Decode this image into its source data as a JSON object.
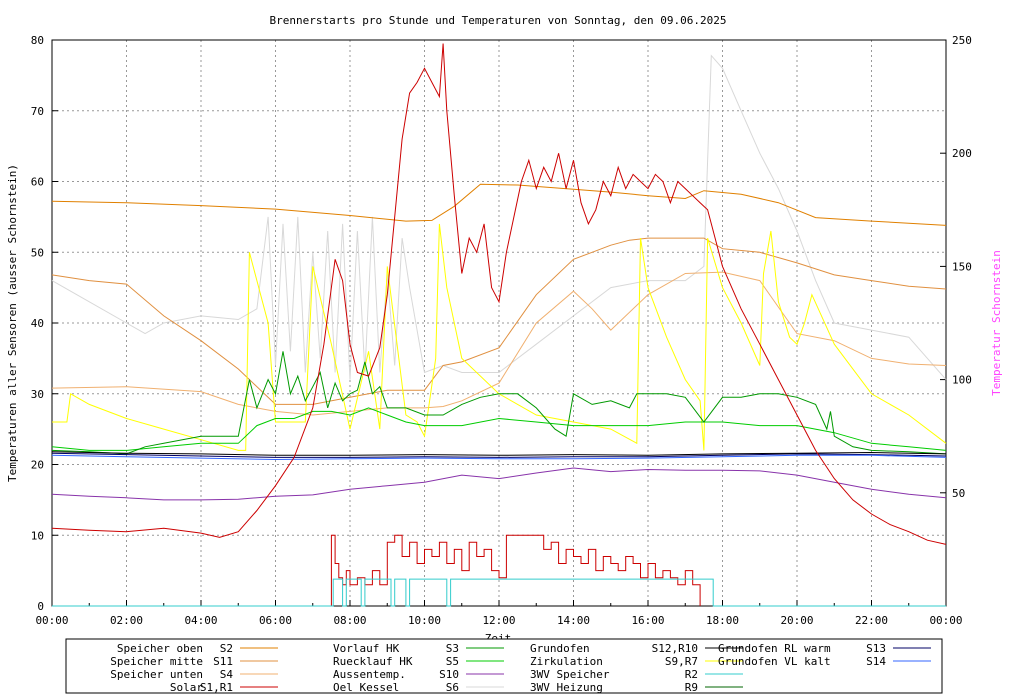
{
  "chart_data": {
    "type": "line",
    "title": "Brennerstarts pro Stunde und Temperaturen von Sonntag, den 09.06.2025",
    "xlabel": "Zeit",
    "ylabel": "Temperaturen aller Sensoren (ausser Schornstein)",
    "y2label": "Temperatur Schornstein",
    "xlim": [
      0,
      24
    ],
    "ylim": [
      0,
      80
    ],
    "y2lim": [
      0,
      250
    ],
    "grid": true,
    "legend_position": "bottom",
    "x_ticks": [
      "00:00",
      "02:00",
      "04:00",
      "06:00",
      "08:00",
      "10:00",
      "12:00",
      "14:00",
      "16:00",
      "18:00",
      "20:00",
      "22:00",
      "00:00"
    ],
    "y_ticks": [
      "0",
      "10",
      "20",
      "30",
      "40",
      "50",
      "60",
      "70",
      "80"
    ],
    "y2_ticks": [
      "50",
      "100",
      "150",
      "200",
      "250"
    ],
    "series": [
      {
        "name": "Speicher oben",
        "sensor": "S2",
        "color": "#e08000",
        "axis": "y",
        "x": [
          0,
          2,
          4,
          6,
          8,
          9.5,
          10.2,
          10.8,
          11.5,
          12.5,
          14,
          15,
          16,
          17,
          17.5,
          18.5,
          19.5,
          20.5,
          22,
          24
        ],
        "y": [
          57.2,
          57,
          56.6,
          56.1,
          55.2,
          54.4,
          54.5,
          56.5,
          59.6,
          59.5,
          58.9,
          58.5,
          58,
          57.6,
          58.7,
          58.2,
          57,
          54.9,
          54.4,
          53.8
        ]
      },
      {
        "name": "Speicher mitte",
        "sensor": "S11",
        "color": "#e09040",
        "axis": "y",
        "x": [
          0,
          1,
          2,
          3,
          4,
          5,
          6,
          7,
          8,
          9,
          10,
          10.5,
          11,
          12,
          13,
          14,
          14.5,
          15,
          15.5,
          16,
          17,
          17.5,
          18,
          19,
          20,
          21,
          22,
          23,
          24
        ],
        "y": [
          46.8,
          46,
          45.5,
          41,
          37.5,
          33.5,
          28.5,
          28.5,
          29.5,
          30.5,
          30.5,
          34,
          34.5,
          36.5,
          44,
          49,
          50,
          51,
          51.7,
          52,
          52,
          52,
          50.5,
          50,
          48.5,
          46.8,
          46,
          45.2,
          44.8
        ]
      },
      {
        "name": "Speicher unten",
        "sensor": "S4",
        "color": "#f0b070",
        "axis": "y",
        "x": [
          0,
          2,
          4,
          5,
          6,
          7,
          8,
          9,
          10,
          10.5,
          11,
          12,
          13,
          14,
          14.5,
          15,
          16,
          17,
          18,
          19,
          20,
          21,
          22,
          23,
          24
        ],
        "y": [
          30.8,
          31,
          30.3,
          28.5,
          27.5,
          27,
          27.5,
          28,
          28,
          28.2,
          29,
          31.5,
          40,
          44.5,
          42,
          39,
          44,
          47,
          47.2,
          46,
          38.5,
          37.5,
          35,
          34.2,
          34
        ]
      },
      {
        "name": "Solar",
        "sensor": "S1,R1",
        "color": "#cc0000",
        "axis": "y",
        "x": [
          0,
          1,
          2,
          3,
          4,
          4.5,
          5,
          5.5,
          6,
          6.5,
          7,
          7.3,
          7.6,
          7.8,
          8,
          8.2,
          8.5,
          8.8,
          9,
          9.2,
          9.4,
          9.6,
          9.8,
          10,
          10.2,
          10.4,
          10.5,
          10.6,
          10.8,
          11,
          11.2,
          11.4,
          11.6,
          11.8,
          12,
          12.2,
          12.4,
          12.6,
          12.8,
          13,
          13.2,
          13.4,
          13.6,
          13.8,
          14,
          14.2,
          14.4,
          14.6,
          14.8,
          15,
          15.2,
          15.4,
          15.6,
          15.8,
          16,
          16.2,
          16.4,
          16.6,
          16.8,
          17,
          17.2,
          17.4,
          17.6,
          17.8,
          18,
          18.5,
          19,
          19.5,
          20,
          20.5,
          21,
          21.5,
          22,
          22.5,
          23,
          23.5,
          24
        ],
        "y": [
          11,
          10.7,
          10.5,
          11,
          10.3,
          9.7,
          10.5,
          13.5,
          17,
          21,
          28,
          37,
          49,
          46,
          37,
          33,
          32.5,
          36.5,
          44,
          55,
          66,
          72.5,
          74,
          76,
          74,
          72,
          79.5,
          70,
          58,
          47,
          52,
          50,
          54,
          45,
          43,
          50,
          55,
          60,
          63,
          59,
          62,
          60,
          64,
          59,
          63,
          57,
          54,
          56,
          60,
          58,
          62,
          59,
          61,
          60,
          59,
          61,
          60,
          57,
          60,
          59,
          58,
          57,
          56,
          52,
          48,
          42,
          37,
          32,
          27,
          22,
          18,
          15,
          13,
          11.5,
          10.5,
          9.3,
          8.7
        ]
      },
      {
        "name": "Vorlauf HK",
        "sensor": "S3",
        "color": "#009900",
        "axis": "y",
        "x": [
          0,
          1,
          2,
          2.5,
          3,
          4,
          5,
          5.3,
          5.5,
          5.8,
          6,
          6.2,
          6.4,
          6.6,
          6.8,
          7,
          7.2,
          7.4,
          7.6,
          7.8,
          8,
          8.2,
          8.4,
          8.6,
          8.8,
          9,
          9.5,
          10,
          10.5,
          11,
          11.5,
          12,
          12.5,
          13,
          13.5,
          13.8,
          14,
          14.5,
          15,
          15.5,
          15.7,
          16,
          16.5,
          17,
          17.5,
          18,
          18.5,
          19,
          19.5,
          20,
          20.5,
          20.8,
          20.9,
          21,
          21.5,
          22,
          23,
          24
        ],
        "y": [
          22,
          21.8,
          21.5,
          22.5,
          23,
          24,
          24,
          32,
          28,
          32,
          30,
          36,
          30,
          32.5,
          29,
          31,
          33,
          28,
          31.5,
          29,
          30,
          30.5,
          34.5,
          30,
          31,
          28,
          28,
          27,
          27,
          28.5,
          29.5,
          30,
          30,
          28,
          25,
          24,
          30,
          28.5,
          29,
          28,
          30,
          30,
          30,
          29.5,
          26,
          29.5,
          29.5,
          30,
          30,
          29.5,
          28.5,
          25,
          27.5,
          24,
          22.5,
          22,
          21.8,
          21.5
        ]
      },
      {
        "name": "Ruecklauf HK",
        "sensor": "S5",
        "color": "#00cc00",
        "axis": "y",
        "x": [
          0,
          1,
          2,
          3,
          4,
          5,
          5.5,
          6,
          6.5,
          7,
          7.5,
          8,
          8.5,
          9,
          9.5,
          10,
          10.5,
          11,
          12,
          13,
          14,
          15,
          16,
          17,
          18,
          19,
          20,
          21,
          22,
          23,
          24
        ],
        "y": [
          22.5,
          22,
          22,
          22.5,
          23,
          23,
          25.5,
          26.5,
          26.5,
          27.5,
          27.5,
          27,
          28,
          27,
          26,
          25.5,
          25.5,
          25.5,
          26.5,
          26,
          25.5,
          25.5,
          25.5,
          26,
          26,
          25.5,
          25.5,
          24.5,
          23,
          22.5,
          22
        ]
      },
      {
        "name": "Aussentemp.",
        "sensor": "S10",
        "color": "#8833aa",
        "axis": "y",
        "x": [
          0,
          1,
          2,
          3,
          4,
          5,
          6,
          7,
          8,
          9,
          10,
          11,
          12,
          13,
          14,
          15,
          16,
          17,
          18,
          19,
          20,
          21,
          22,
          23,
          24
        ],
        "y": [
          15.8,
          15.5,
          15.3,
          15,
          15,
          15.1,
          15.5,
          15.7,
          16.5,
          17,
          17.5,
          18.5,
          18,
          18.8,
          19.5,
          19,
          19.3,
          19.2,
          19.2,
          19.1,
          18.5,
          17.5,
          16.5,
          15.8,
          15.3
        ]
      },
      {
        "name": "Oel Kessel",
        "sensor": "S6",
        "color": "#d8d8d8",
        "axis": "y",
        "x": [
          0,
          1,
          2,
          2.5,
          3,
          4,
          5,
          5.5,
          5.8,
          6,
          6.2,
          6.4,
          6.6,
          6.8,
          7,
          7.2,
          7.4,
          7.6,
          7.8,
          8,
          8.2,
          8.4,
          8.6,
          8.8,
          9,
          9.2,
          9.4,
          9.6,
          10,
          10.5,
          11,
          11.5,
          12,
          13,
          14,
          15,
          16,
          17,
          17.5,
          17.7,
          18,
          18.5,
          19,
          19.5,
          20,
          20.5,
          21,
          22,
          23,
          24
        ],
        "y": [
          46,
          43,
          40,
          38.5,
          40,
          41,
          40.5,
          42,
          55,
          34,
          54,
          36,
          55,
          33,
          50,
          35,
          53,
          33,
          54,
          32,
          53,
          33,
          55,
          33,
          47,
          34,
          52,
          45,
          33,
          34,
          33,
          33,
          33,
          37,
          41,
          45,
          46,
          46,
          48,
          77.8,
          76,
          70,
          64,
          59,
          53,
          46,
          40,
          39,
          38,
          32
        ]
      },
      {
        "name": "Grundofen",
        "sensor": "S12,R10",
        "color": "#000000",
        "axis": "y",
        "x": [
          0,
          2,
          4,
          6,
          8,
          10,
          12,
          14,
          16,
          18,
          20,
          22,
          24
        ],
        "y": [
          21.8,
          21.6,
          21.5,
          21.3,
          21.3,
          21.4,
          21.3,
          21.4,
          21.3,
          21.5,
          21.6,
          21.7,
          21.5
        ]
      },
      {
        "name": "Zirkulation",
        "sensor": "S9,R7",
        "color": "#ffff00",
        "axis": "y",
        "x": [
          0,
          0.4,
          0.5,
          1,
          2,
          3,
          4,
          5,
          5.2,
          5.3,
          5.8,
          6,
          6.8,
          7,
          7.5,
          8,
          8.5,
          8.8,
          9,
          9.5,
          9.8,
          10,
          10.3,
          10.4,
          10.6,
          11,
          12,
          13,
          14,
          15,
          15.7,
          15.8,
          16,
          16.5,
          17,
          17.4,
          17.5,
          17.6,
          18,
          18.5,
          19,
          19.1,
          19.3,
          19.5,
          19.8,
          20,
          20.2,
          20.4,
          21,
          22,
          23,
          24
        ],
        "y": [
          26,
          26,
          30,
          28.5,
          26.5,
          25,
          23.5,
          22,
          22,
          50,
          40,
          26,
          26,
          48,
          37,
          25,
          36,
          25,
          48,
          27,
          26,
          24,
          35,
          54,
          45,
          35,
          30,
          27,
          26,
          25,
          23,
          52,
          45,
          38,
          32,
          29,
          22,
          52,
          45,
          40,
          34,
          47,
          53,
          43,
          38,
          37,
          40,
          44,
          37,
          30,
          27,
          23
        ]
      },
      {
        "name": "Grundofen RL warm",
        "sensor": "S13",
        "color": "#000066",
        "axis": "y",
        "x": [
          0,
          2,
          4,
          6,
          8,
          10,
          12,
          14,
          16,
          18,
          20,
          22,
          24
        ],
        "y": [
          21.6,
          21.4,
          21.2,
          21,
          21,
          21.1,
          21,
          21.1,
          21.1,
          21.3,
          21.5,
          21.4,
          21.2
        ]
      },
      {
        "name": "Grundofen VL kalt",
        "sensor": "S14",
        "color": "#3366ff",
        "axis": "y",
        "x": [
          0,
          2,
          4,
          6,
          8,
          10,
          12,
          14,
          16,
          18,
          20,
          22,
          24
        ],
        "y": [
          21.3,
          21.1,
          20.9,
          20.7,
          20.8,
          20.9,
          20.8,
          20.8,
          20.9,
          21.1,
          21.3,
          21.3,
          21
        ]
      },
      {
        "name": "Brennerstarts",
        "sensor": "",
        "color": "#cc0000",
        "axis": "y",
        "step": true,
        "x": [
          0,
          7.5,
          7.6,
          7.7,
          7.8,
          7.9,
          8.0,
          8.2,
          8.4,
          8.6,
          8.8,
          9.0,
          9.2,
          9.4,
          9.6,
          9.8,
          10.0,
          10.2,
          10.4,
          10.6,
          10.8,
          11.0,
          11.2,
          11.4,
          11.6,
          11.8,
          12.0,
          12.2,
          12.4,
          12.6,
          12.8,
          13.0,
          13.2,
          13.4,
          13.6,
          13.8,
          14.0,
          14.2,
          14.4,
          14.6,
          14.8,
          15.0,
          15.2,
          15.4,
          15.6,
          15.8,
          16.0,
          16.2,
          16.4,
          16.6,
          16.8,
          17.0,
          17.2,
          17.4
        ],
        "y": [
          0,
          10,
          6,
          4,
          3,
          5,
          3,
          4,
          3,
          5,
          3,
          9,
          10,
          7,
          9,
          6,
          8,
          7,
          9,
          6,
          8,
          5,
          9,
          7,
          8,
          5,
          4,
          10,
          10,
          10,
          10,
          10,
          8,
          9,
          6,
          8,
          7,
          6,
          8,
          5,
          7,
          6,
          5,
          7,
          6,
          4,
          6,
          4,
          5,
          4,
          3,
          5,
          3,
          0
        ]
      },
      {
        "name": "3WV Speicher",
        "sensor": "R2",
        "color": "#33cccc",
        "axis": "y",
        "step": true,
        "x": [
          0,
          7.55,
          7.8,
          7.9,
          8.3,
          8.4,
          9.1,
          9.2,
          9.5,
          9.6,
          10.6,
          10.7,
          17.75,
          17.8,
          24
        ],
        "y": [
          0,
          3.8,
          0,
          3.8,
          0,
          3.8,
          0,
          3.8,
          0,
          3.8,
          0,
          3.8,
          0,
          0,
          0
        ]
      },
      {
        "name": "3WV Heizung",
        "sensor": "R9",
        "color": "#006600",
        "axis": "y",
        "step": true,
        "x": [
          0,
          5.85,
          10.7,
          12.6,
          17.2,
          17.5,
          21.5,
          24
        ],
        "y": [
          3.5,
          0,
          3.5,
          0,
          5,
          0,
          3.5,
          3.5
        ]
      }
    ]
  },
  "legend": {
    "items": [
      {
        "name": "Speicher oben",
        "sensor": "S2",
        "color": "#e08000"
      },
      {
        "name": "Speicher mitte",
        "sensor": "S11",
        "color": "#e09040"
      },
      {
        "name": "Speicher unten",
        "sensor": "S4",
        "color": "#f0b070"
      },
      {
        "name": "Solar",
        "sensor": "S1,R1",
        "color": "#cc0000"
      },
      {
        "name": "Vorlauf HK",
        "sensor": "S3",
        "color": "#009900"
      },
      {
        "name": "Ruecklauf HK",
        "sensor": "S5",
        "color": "#00cc00"
      },
      {
        "name": "Aussentemp.",
        "sensor": "S10",
        "color": "#8833aa"
      },
      {
        "name": "Oel Kessel",
        "sensor": "S6",
        "color": "#d8d8d8"
      },
      {
        "name": "Grundofen",
        "sensor": "S12,R10",
        "color": "#000000"
      },
      {
        "name": "Zirkulation",
        "sensor": "S9,R7",
        "color": "#ffff00"
      },
      {
        "name": "3WV Speicher",
        "sensor": "R2",
        "color": "#33cccc"
      },
      {
        "name": "3WV Heizung",
        "sensor": "R9",
        "color": "#006600"
      },
      {
        "name": "Grundofen RL warm",
        "sensor": "S13",
        "color": "#000066"
      },
      {
        "name": "Grundofen VL kalt",
        "sensor": "S14",
        "color": "#3366ff"
      }
    ]
  }
}
